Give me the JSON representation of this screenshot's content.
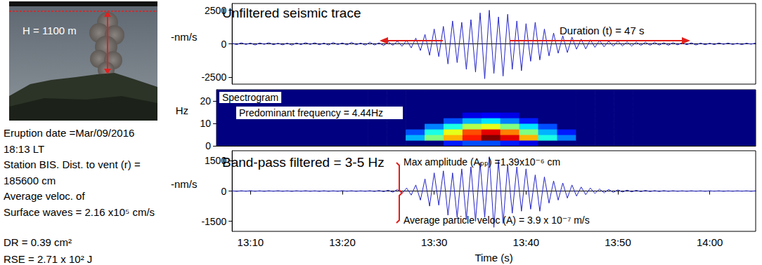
{
  "photo_label": "H = 1100 m",
  "info": [
    "Eruption date =Mar/09/2016",
    "18:13 LT",
    "Station BIS. Dist. to vent (r) =",
    "185600 cm",
    "Average veloc. of",
    "Surface waves = 2.16 x10⁵ cm/s"
  ],
  "results": [
    "DR = 0.39 cm²",
    "RSE = 2.71 x 10² J"
  ],
  "chart_data": [
    {
      "type": "line",
      "title": "Unfiltered seismic trace",
      "ylabel": "-nm/s",
      "annotations": [
        "Duration (t) = 47 s"
      ],
      "color": "#2323c8",
      "grid": false,
      "tick_labels": "y",
      "xlim": [
        8,
        65
      ],
      "ylim": [
        -3000,
        3000
      ],
      "yticks": [
        -2500,
        0,
        2500
      ],
      "x": [
        8,
        8.5,
        9,
        9.5,
        10,
        10.5,
        11,
        11.5,
        12,
        12.5,
        13,
        13.5,
        14,
        14.5,
        15,
        15.5,
        16,
        16.5,
        17,
        17.5,
        18,
        18.5,
        19,
        19.5,
        20,
        20.5,
        21,
        21.5,
        22,
        22.5,
        23,
        23.5,
        24,
        24.5,
        25,
        25.5,
        26,
        26.5,
        27,
        27.5,
        28,
        28.5,
        29,
        29.5,
        30,
        30.5,
        31,
        31.5,
        32,
        32.5,
        33,
        33.5,
        34,
        34.5,
        35,
        35.5,
        36,
        36.5,
        37,
        37.5,
        38,
        38.5,
        39,
        39.5,
        40,
        40.5,
        41,
        41.5,
        42,
        42.5,
        43,
        43.5,
        44,
        44.5,
        45,
        45.5,
        46,
        46.5,
        47,
        47.5,
        48,
        48.5,
        49,
        49.5,
        50,
        50.5,
        51,
        51.5,
        52,
        52.5,
        53,
        53.5,
        54,
        54.5,
        55,
        55.5,
        56,
        56.5,
        57,
        57.5,
        58,
        58.5,
        59,
        59.5,
        60,
        60.5,
        61,
        61.5,
        62,
        62.5,
        63,
        63.5,
        64,
        64.5,
        65
      ],
      "values": [
        40,
        -60,
        80,
        -50,
        60,
        -90,
        70,
        -40,
        90,
        -70,
        50,
        -80,
        60,
        -100,
        70,
        -60,
        90,
        -50,
        80,
        -70,
        60,
        -90,
        100,
        -60,
        70,
        -80,
        110,
        -70,
        60,
        -100,
        120,
        -90,
        80,
        -130,
        150,
        -110,
        200,
        -180,
        260,
        -300,
        420,
        -500,
        700,
        -850,
        1100,
        -950,
        1300,
        -1500,
        1700,
        -1400,
        1600,
        -1900,
        1800,
        -2100,
        2300,
        -2600,
        2500,
        -2200,
        2000,
        -2400,
        2200,
        -1900,
        1700,
        -2000,
        1500,
        -1300,
        1600,
        -1200,
        1100,
        -900,
        800,
        -700,
        600,
        -650,
        500,
        -400,
        350,
        -380,
        300,
        -260,
        250,
        -220,
        200,
        -180,
        220,
        -160,
        150,
        -170,
        140,
        -120,
        130,
        -110,
        120,
        -100,
        90,
        -110,
        100,
        -80,
        90,
        -70,
        80,
        -90,
        60,
        -70,
        50,
        -60,
        70,
        -40,
        60,
        -50,
        40,
        -60,
        50,
        -30,
        60
      ]
    },
    {
      "type": "heatmap",
      "title": "Spectrogram",
      "ylabel": "Hz",
      "annotations": [
        "Predominant frequency = 4.44Hz"
      ],
      "grid": false,
      "tick_labels": "y",
      "xlim": [
        8,
        65
      ],
      "ylim": [
        0,
        25
      ],
      "yticks": [
        0,
        10,
        20
      ],
      "x_bins": [
        8,
        10,
        12,
        14,
        16,
        18,
        20,
        22,
        24,
        26,
        28,
        30,
        32,
        34,
        36,
        38,
        40,
        42,
        44,
        46,
        48,
        50,
        52,
        54,
        56,
        58,
        60,
        62,
        64,
        65
      ],
      "y_bins": [
        0,
        2.5,
        5,
        7.5,
        10,
        12.5,
        15,
        17.5,
        20,
        22.5,
        25
      ],
      "zlim": [
        0,
        1
      ],
      "cells": [
        [
          0,
          0,
          0,
          0,
          0,
          0,
          0,
          0,
          0,
          0,
          0,
          0,
          0.15,
          0.2,
          0.2,
          0.15,
          0.1,
          0,
          0,
          0,
          0,
          0,
          0,
          0,
          0,
          0,
          0,
          0,
          0
        ],
        [
          0,
          0,
          0,
          0,
          0,
          0,
          0,
          0,
          0,
          0,
          0.3,
          0.5,
          0.7,
          0.85,
          1,
          0.9,
          0.7,
          0.4,
          0.25,
          0,
          0,
          0,
          0,
          0,
          0,
          0,
          0,
          0,
          0
        ],
        [
          0,
          0,
          0,
          0,
          0,
          0,
          0,
          0,
          0,
          0,
          0.2,
          0.4,
          0.6,
          0.8,
          0.9,
          0.75,
          0.5,
          0.3,
          0.15,
          0,
          0,
          0,
          0,
          0,
          0,
          0,
          0,
          0,
          0
        ],
        [
          0,
          0,
          0,
          0,
          0,
          0,
          0,
          0,
          0,
          0,
          0,
          0.25,
          0.4,
          0.55,
          0.6,
          0.5,
          0.35,
          0.2,
          0,
          0,
          0,
          0,
          0,
          0,
          0,
          0,
          0,
          0,
          0
        ],
        [
          0,
          0,
          0,
          0,
          0,
          0,
          0,
          0,
          0,
          0,
          0,
          0,
          0.2,
          0.3,
          0.35,
          0.25,
          0.15,
          0,
          0,
          0,
          0,
          0,
          0,
          0,
          0,
          0,
          0,
          0,
          0
        ],
        [
          0,
          0,
          0,
          0,
          0,
          0,
          0,
          0,
          0,
          0,
          0,
          0,
          0,
          0.1,
          0.12,
          0.1,
          0,
          0,
          0,
          0,
          0,
          0,
          0,
          0,
          0,
          0,
          0,
          0,
          0
        ],
        [
          0,
          0,
          0,
          0,
          0,
          0,
          0,
          0,
          0,
          0,
          0,
          0,
          0,
          0,
          0,
          0,
          0,
          0,
          0,
          0,
          0,
          0,
          0,
          0,
          0,
          0,
          0,
          0,
          0
        ],
        [
          0,
          0,
          0,
          0,
          0,
          0,
          0,
          0,
          0,
          0,
          0,
          0,
          0,
          0,
          0,
          0,
          0,
          0,
          0,
          0,
          0,
          0,
          0,
          0,
          0,
          0,
          0,
          0,
          0
        ],
        [
          0,
          0,
          0,
          0,
          0,
          0,
          0,
          0,
          0,
          0,
          0,
          0,
          0,
          0,
          0,
          0,
          0,
          0,
          0,
          0,
          0,
          0,
          0,
          0,
          0,
          0,
          0,
          0,
          0
        ],
        [
          0,
          0,
          0,
          0,
          0,
          0,
          0,
          0,
          0,
          0,
          0,
          0,
          0,
          0,
          0,
          0,
          0,
          0,
          0,
          0,
          0,
          0,
          0,
          0,
          0,
          0,
          0,
          0,
          0
        ]
      ]
    },
    {
      "type": "line",
      "title": "Band-pass filtered = 3-5 Hz",
      "ylabel": "-nm/s",
      "xlabel": "Time (s)",
      "annotations": [
        "Max amplitude (Aₚₚ) =1.39x10⁻⁶ cm",
        "Average particle veloc (A) = 3.9 x 10⁻⁷ m/s"
      ],
      "color": "#2323c8",
      "grid": false,
      "xlim": [
        8,
        65
      ],
      "ylim": [
        -2000,
        2000
      ],
      "yticks": [
        -1500,
        0,
        1500
      ],
      "xticks": [
        {
          "value": 10,
          "label": "13:10"
        },
        {
          "value": 20,
          "label": "13:20"
        },
        {
          "value": 30,
          "label": "13:30"
        },
        {
          "value": 40,
          "label": "13:40"
        },
        {
          "value": 50,
          "label": "13:50"
        },
        {
          "value": 60,
          "label": "14:00"
        }
      ],
      "x": [
        8,
        8.5,
        9,
        9.5,
        10,
        10.5,
        11,
        11.5,
        12,
        12.5,
        13,
        13.5,
        14,
        14.5,
        15,
        15.5,
        16,
        16.5,
        17,
        17.5,
        18,
        18.5,
        19,
        19.5,
        20,
        20.5,
        21,
        21.5,
        22,
        22.5,
        23,
        23.5,
        24,
        24.5,
        25,
        25.5,
        26,
        26.5,
        27,
        27.5,
        28,
        28.5,
        29,
        29.5,
        30,
        30.5,
        31,
        31.5,
        32,
        32.5,
        33,
        33.5,
        34,
        34.5,
        35,
        35.5,
        36,
        36.5,
        37,
        37.5,
        38,
        38.5,
        39,
        39.5,
        40,
        40.5,
        41,
        41.5,
        42,
        42.5,
        43,
        43.5,
        44,
        44.5,
        45,
        45.5,
        46,
        46.5,
        47,
        47.5,
        48,
        48.5,
        49,
        49.5,
        50,
        50.5,
        51,
        51.5,
        52,
        52.5,
        53,
        53.5,
        54,
        54.5,
        55,
        55.5,
        56,
        56.5,
        57,
        57.5,
        58,
        58.5,
        59,
        59.5,
        60,
        60.5,
        61,
        61.5,
        62,
        62.5,
        63,
        63.5,
        64,
        64.5,
        65
      ],
      "values": [
        10,
        -15,
        12,
        -10,
        15,
        -12,
        10,
        -14,
        12,
        -10,
        14,
        -12,
        10,
        -15,
        12,
        -10,
        14,
        -12,
        10,
        -15,
        12,
        -14,
        10,
        -12,
        15,
        -10,
        12,
        -14,
        10,
        -12,
        15,
        -20,
        25,
        -30,
        40,
        -60,
        80,
        -120,
        150,
        -200,
        300,
        -450,
        600,
        -750,
        900,
        -700,
        1000,
        -1200,
        900,
        -1300,
        1100,
        -1400,
        1200,
        -1500,
        1400,
        -1300,
        1700,
        -1800,
        1500,
        -1600,
        1300,
        -1100,
        1200,
        -1000,
        1100,
        -900,
        800,
        -1000,
        700,
        -600,
        500,
        -450,
        400,
        -350,
        300,
        -250,
        200,
        -180,
        150,
        -120,
        100,
        -90,
        80,
        -70,
        60,
        -50,
        45,
        -40,
        35,
        -30,
        30,
        -25,
        20,
        -22,
        18,
        -15,
        14,
        -12,
        10,
        -12,
        12,
        -10,
        10,
        -12,
        10,
        -8,
        10,
        -12,
        8,
        -10,
        10,
        -8,
        10,
        -12,
        10
      ]
    }
  ]
}
